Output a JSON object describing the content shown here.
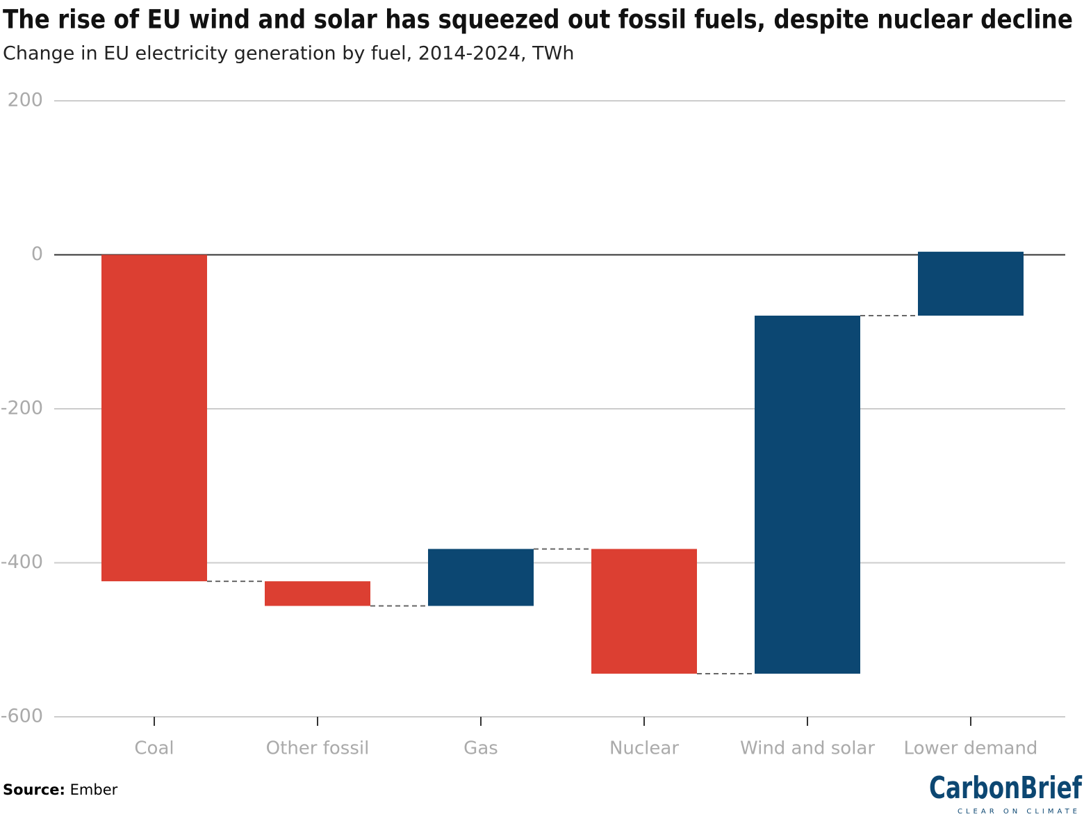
{
  "chart_data": {
    "type": "waterfall",
    "title": "The rise of EU wind and solar has squeezed out fossil fuels, despite nuclear decline",
    "subtitle": "Change in EU electricity generation by fuel, 2014-2024, TWh",
    "categories": [
      "Coal",
      "Other fossil",
      "Gas",
      "Nuclear",
      "Wind and solar",
      "Lower demand"
    ],
    "values": [
      -424,
      -32,
      74,
      -162,
      465,
      83
    ],
    "negative_color": "#dc3f32",
    "positive_color": "#0c4772",
    "ylim": [
      -600,
      200
    ],
    "yticks": [
      -600,
      -400,
      -200,
      0,
      200
    ],
    "grid": true,
    "source_label": "Source:",
    "source": "Ember",
    "logo": "CarbonBrief",
    "logo_tagline": "CLEAR ON CLIMATE"
  }
}
